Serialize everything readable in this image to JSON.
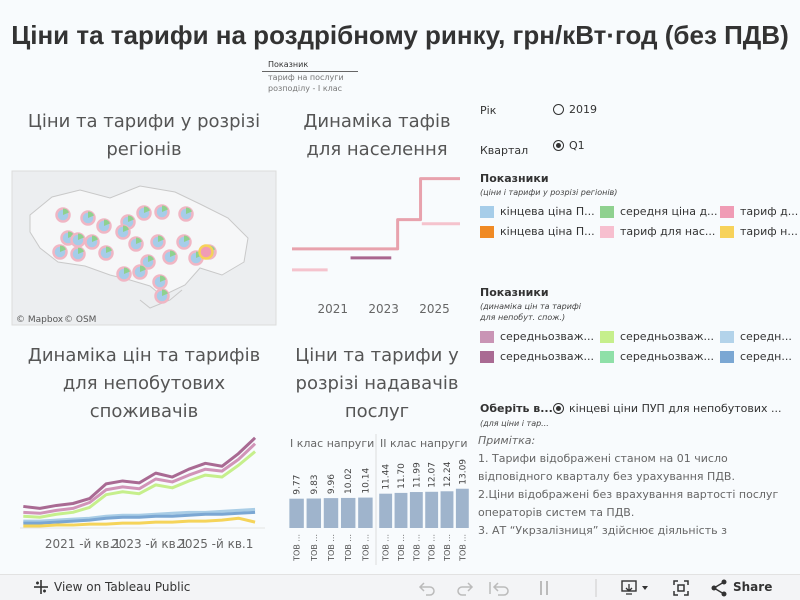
{
  "header": {
    "title": "Ціни та тарифи на роздрібному ринку, грн/кВт·год (без ПДВ)"
  },
  "tooltip": {
    "heading": "Показник",
    "lines": [
      "тариф на послуги",
      "розподілу - І клас"
    ]
  },
  "chart_data": [
    {
      "type": "map",
      "title": "Ціни та тарифи у розрізі регіонів",
      "attribution": [
        "© Mapbox",
        "© OSM"
      ]
    },
    {
      "type": "line",
      "title": "Динаміка тафів для населення",
      "xlim": [
        2019.4,
        2026
      ],
      "xticks": [
        2021,
        2023,
        2025
      ],
      "ylim": [
        0,
        5
      ],
      "series": [
        {
          "color": "#e8a2ad",
          "x": [
            2019.4,
            2023.55,
            2023.55,
            2024.45,
            2024.45,
            2026
          ],
          "values": [
            1.44,
            1.44,
            2.64,
            2.64,
            4.32,
            4.32
          ]
        },
        {
          "color": "#f5c3cd",
          "x": [
            2019.4,
            2020.8
          ],
          "values": [
            0.58,
            0.58
          ]
        },
        {
          "color": "#a9668f",
          "x": [
            2021.7,
            2023.3
          ],
          "values": [
            1.07,
            1.07
          ]
        },
        {
          "color": "#f5c3cd",
          "x": [
            2024.5,
            2026
          ],
          "values": [
            2.47,
            2.47
          ]
        }
      ]
    },
    {
      "type": "line",
      "title": "Динаміка цін та тарифів для непобутових споживачів",
      "xlim": [
        2019.1,
        2026.5
      ],
      "xticks": [
        {
          "value": 2021,
          "label": "2021 -й кв.1"
        },
        {
          "value": 2023,
          "label": "2023 -й кв.1"
        },
        {
          "value": 2025,
          "label": "2025 -й кв.1"
        }
      ],
      "ylim": [
        0,
        10
      ],
      "x": [
        2019.2,
        2019.7,
        2020.2,
        2020.7,
        2021.2,
        2021.7,
        2022.2,
        2022.7,
        2023.2,
        2023.7,
        2024.2,
        2024.7,
        2025.2,
        2025.7,
        2026.2
      ],
      "series": [
        {
          "color": "#a96a93",
          "values": [
            2.2,
            2.0,
            2.3,
            2.5,
            3.0,
            4.5,
            4.8,
            4.6,
            5.6,
            5.2,
            6.0,
            6.6,
            6.3,
            7.6,
            9.2
          ]
        },
        {
          "color": "#d194b8",
          "values": [
            1.6,
            1.5,
            1.8,
            2.0,
            2.6,
            3.9,
            4.2,
            4.0,
            5.0,
            4.7,
            5.4,
            6.0,
            5.8,
            7.0,
            8.6
          ]
        },
        {
          "color": "#c6ef8c",
          "values": [
            1.2,
            1.1,
            1.4,
            1.6,
            2.1,
            3.4,
            3.7,
            3.5,
            4.4,
            4.1,
            4.8,
            5.4,
            5.2,
            6.4,
            7.8
          ]
        },
        {
          "color": "#a9cde6",
          "values": [
            0.7,
            0.7,
            0.8,
            0.9,
            1.0,
            1.2,
            1.3,
            1.3,
            1.4,
            1.5,
            1.6,
            1.6,
            1.7,
            1.8,
            1.9
          ]
        },
        {
          "color": "#7ba7d3",
          "values": [
            0.5,
            0.5,
            0.6,
            0.7,
            0.8,
            1.0,
            1.1,
            1.1,
            1.2,
            1.2,
            1.3,
            1.4,
            1.4,
            1.5,
            1.6
          ]
        },
        {
          "color": "#f5d45a",
          "values": [
            0.2,
            0.2,
            0.3,
            0.3,
            0.4,
            0.4,
            0.5,
            0.5,
            0.6,
            0.6,
            0.7,
            0.7,
            0.8,
            1.0,
            0.6
          ]
        }
      ]
    },
    {
      "type": "bar",
      "title": "Ціни та тарифи у розрізі надавачів послуг",
      "ylim": [
        0,
        14
      ],
      "color": "#9fb4cc",
      "groups": [
        {
          "name": "І клас напруги",
          "categories": [
            "ТОВ ...",
            "ТОВ ...",
            "ТОВ ...",
            "ТОВ ...",
            "ТОВ ..."
          ],
          "values": [
            9.77,
            9.83,
            9.96,
            10.02,
            10.14
          ]
        },
        {
          "name": "ІІ клас напруги",
          "categories": [
            "ТОВ ...",
            "ТОВ ...",
            "ТОВ ...",
            "ТОВ ...",
            "ТОВ ...",
            "ТОВ ..."
          ],
          "values": [
            11.44,
            11.7,
            11.99,
            12.07,
            12.24,
            13.09
          ],
          "value_labels": [
            "11.44",
            "11.70",
            "11.99",
            "12.07",
            "12.24",
            "13.09"
          ]
        }
      ]
    }
  ],
  "filters": [
    {
      "label": "Рік",
      "options": [
        "2019"
      ]
    },
    {
      "label": "Квартал",
      "options": [
        "Q1"
      ],
      "selected": 0
    },
    {
      "label": "Оберіть в...",
      "subtitle": "(для ціни і тар...",
      "options": [
        "кінцеві ціни ПУП для непобутових ..."
      ],
      "selected": 0
    }
  ],
  "legends": [
    {
      "title": "Показники",
      "subtitle_lines": [
        "(ціни і тарифи у розрізі регіонів)"
      ],
      "items": [
        {
          "label": "кінцева ціна П...",
          "color": "#a6cde9"
        },
        {
          "label": "середня ціна д...",
          "color": "#8fd18f"
        },
        {
          "label": "тариф д...",
          "color": "#f09cb5"
        },
        {
          "label": "кінцева ціна П...",
          "color": "#f08a24"
        },
        {
          "label": "тариф для нас...",
          "color": "#f7bfcf"
        },
        {
          "label": "тариф н...",
          "color": "#f7d25a"
        }
      ]
    },
    {
      "title": "Показники",
      "subtitle_lines": [
        "(динаміка цін та тарифі",
        "для непобут. спож.)"
      ],
      "items": [
        {
          "label": "середньозваж...",
          "color": "#c994b5"
        },
        {
          "label": "середньозваж...",
          "color": "#c6ef8c"
        },
        {
          "label": "середн...",
          "color": "#b3d3ea"
        },
        {
          "label": "середньозваж...",
          "color": "#a96a93"
        },
        {
          "label": "середньозваж...",
          "color": "#8fe0a8"
        },
        {
          "label": "середн...",
          "color": "#7ba7d3"
        }
      ]
    }
  ],
  "note": {
    "title": "Примітка:",
    "lines": [
      "1. Тарифи відображені станом на 01 число",
      "відповідного кварталу без урахування ПДВ.",
      "2.Ціни відображені без врахування вартості послуг",
      "операторів систем та ПДВ.",
      "3. АТ “Укрзалізниця” здійснює діяльність з"
    ]
  },
  "toolbar": {
    "view": "View on Tableau Public",
    "share": "Share"
  }
}
